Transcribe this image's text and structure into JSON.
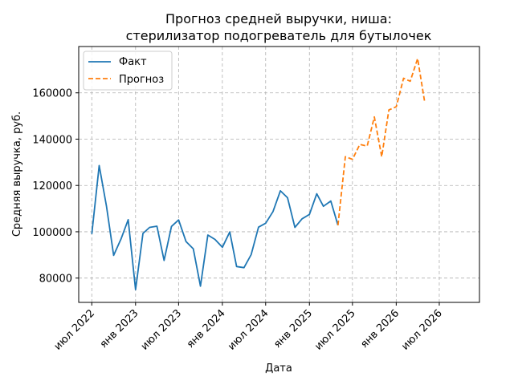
{
  "chart_data": {
    "type": "line",
    "title": [
      "Прогноз средней выручки, ниша:",
      "стерилизатор подогреватель для бутылочек"
    ],
    "xlabel": "Дата",
    "ylabel": "Средняя выручка, руб.",
    "ylim": [
      69500,
      180000
    ],
    "yticks": [
      80000,
      100000,
      120000,
      140000,
      160000
    ],
    "xlim": [
      "2022-05-07",
      "2026-12-17"
    ],
    "xticks": [
      {
        "date": "2022-07-01",
        "label": "июл 2022"
      },
      {
        "date": "2023-01-01",
        "label": "янв 2023"
      },
      {
        "date": "2023-07-01",
        "label": "июл 2023"
      },
      {
        "date": "2024-01-01",
        "label": "янв 2024"
      },
      {
        "date": "2024-07-01",
        "label": "июл 2024"
      },
      {
        "date": "2025-01-01",
        "label": "янв 2025"
      },
      {
        "date": "2025-07-01",
        "label": "июл 2025"
      },
      {
        "date": "2026-01-01",
        "label": "янв 2026"
      },
      {
        "date": "2026-07-01",
        "label": "июл 2026"
      }
    ],
    "grid": true,
    "legend_position": "top-left",
    "series": [
      {
        "name": "Факт",
        "color": "#1f77b4",
        "style": "solid",
        "points": [
          [
            "2022-07-01",
            99000
          ],
          [
            "2022-08-01",
            128600
          ],
          [
            "2022-09-01",
            111000
          ],
          [
            "2022-10-01",
            89800
          ],
          [
            "2022-11-01",
            96900
          ],
          [
            "2022-12-01",
            105200
          ],
          [
            "2023-01-01",
            75000
          ],
          [
            "2023-02-01",
            99300
          ],
          [
            "2023-03-01",
            101900
          ],
          [
            "2023-04-01",
            102400
          ],
          [
            "2023-05-01",
            87600
          ],
          [
            "2023-06-01",
            102300
          ],
          [
            "2023-07-01",
            105100
          ],
          [
            "2023-08-01",
            95800
          ],
          [
            "2023-09-01",
            92600
          ],
          [
            "2023-10-01",
            76500
          ],
          [
            "2023-11-01",
            98600
          ],
          [
            "2023-12-01",
            96700
          ],
          [
            "2024-01-01",
            93300
          ],
          [
            "2024-02-01",
            99900
          ],
          [
            "2024-03-01",
            85000
          ],
          [
            "2024-04-01",
            84500
          ],
          [
            "2024-05-01",
            90100
          ],
          [
            "2024-06-01",
            102000
          ],
          [
            "2024-07-01",
            103700
          ],
          [
            "2024-08-01",
            108700
          ],
          [
            "2024-09-01",
            117700
          ],
          [
            "2024-10-01",
            114700
          ],
          [
            "2024-11-01",
            101900
          ],
          [
            "2024-12-01",
            105600
          ],
          [
            "2025-01-01",
            107500
          ],
          [
            "2025-02-01",
            116400
          ],
          [
            "2025-03-01",
            111000
          ],
          [
            "2025-04-01",
            113300
          ],
          [
            "2025-05-01",
            102800
          ]
        ]
      },
      {
        "name": "Прогноз",
        "color": "#ff7f0e",
        "style": "dashed",
        "points": [
          [
            "2025-05-01",
            102800
          ],
          [
            "2025-06-01",
            132400
          ],
          [
            "2025-07-01",
            131300
          ],
          [
            "2025-08-01",
            137700
          ],
          [
            "2025-09-01",
            137000
          ],
          [
            "2025-10-01",
            149600
          ],
          [
            "2025-11-01",
            132400
          ],
          [
            "2025-12-01",
            152600
          ],
          [
            "2026-01-01",
            154000
          ],
          [
            "2026-02-01",
            166300
          ],
          [
            "2026-03-01",
            165000
          ],
          [
            "2026-04-01",
            174800
          ],
          [
            "2026-05-01",
            155800
          ]
        ]
      }
    ]
  }
}
